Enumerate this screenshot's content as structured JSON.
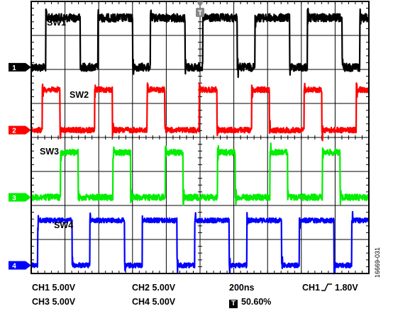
{
  "chart_data": {
    "type": "line",
    "title": "",
    "instrument": "oscilloscope",
    "grid": true,
    "grid_divisions": {
      "x": 10,
      "y": 8
    },
    "time_per_division": "200ns",
    "volts_per_division": {
      "CH1": "5.00V",
      "CH2": "5.00V",
      "CH3": "5.00V",
      "CH4": "5.00V"
    },
    "period_ns": 310,
    "x_unit": "ns",
    "x_range": [
      -1000,
      1000
    ],
    "y_unit": "divisions",
    "trigger": {
      "source": "CH1",
      "slope": "rising",
      "level": "1.80V",
      "position_percent": 50.6,
      "time_ns": 0
    },
    "series": [
      {
        "name": "SW1",
        "channel": "1",
        "color": "#000000",
        "low_div": 2.95,
        "high_div": 4.6,
        "high_start_ns": -914,
        "high_duration_ns": 205,
        "noise_div": 0.12
      },
      {
        "name": "SW2",
        "channel": "2",
        "color": "#ff0000",
        "low_div": 1.9,
        "high_div": 3.4,
        "high_start_ns": -934,
        "high_duration_ns": 105,
        "noise_div": 0.08
      },
      {
        "name": "SW3",
        "channel": "3",
        "color": "#00ee00",
        "low_div": 1.9,
        "high_div": 3.4,
        "high_start_ns": -826,
        "high_duration_ns": 105,
        "noise_div": 0.09
      },
      {
        "name": "SW4",
        "channel": "4",
        "color": "#0000ff",
        "low_div": 2.08,
        "high_div": 3.0,
        "high_start_ns": -962,
        "high_duration_ns": 205,
        "noise_div": 0.07
      }
    ],
    "trace_labels": [
      "SW1",
      "SW2",
      "SW3",
      "SW4"
    ],
    "channel_markers": [
      {
        "label": "1",
        "color": "#000000",
        "text_color": "#ffffff"
      },
      {
        "label": "2",
        "color": "#ff0000",
        "text_color": "#ffffff"
      },
      {
        "label": "3",
        "color": "#00ee00",
        "text_color": "#ffffff"
      },
      {
        "label": "4",
        "color": "#0000ff",
        "text_color": "#ffffff"
      }
    ],
    "trigger_marker": "T"
  },
  "status_bar": {
    "ch1": "CH1  5.00V",
    "ch2": "CH2  5.00V",
    "timebase": "200ns",
    "trigger_source": "CH1",
    "trigger_level": "1.80V",
    "ch3": "CH3  5.00V",
    "ch4": "CH4  5.00V",
    "trigger_badge": "T",
    "trigger_position": "50.60%"
  },
  "figure_id": "16669-031"
}
